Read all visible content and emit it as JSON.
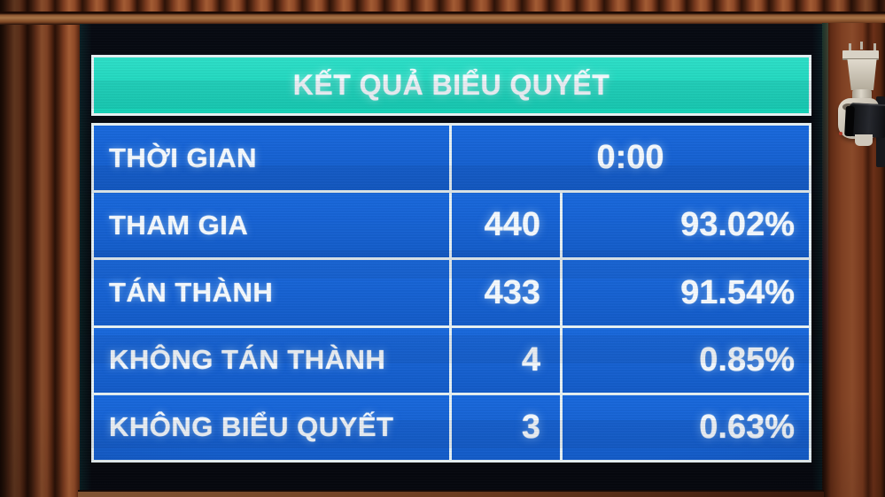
{
  "board": {
    "title": "KẾT QUẢ BIỂU QUYẾT",
    "time_row": {
      "label": "THỜI GIAN",
      "value": "0:00"
    },
    "rows": [
      {
        "label": "THAM GIA",
        "count": "440",
        "percent": "93.02%"
      },
      {
        "label": "TÁN THÀNH",
        "count": "433",
        "percent": "91.54%"
      },
      {
        "label": "KHÔNG TÁN THÀNH",
        "count": "4",
        "percent": "0.85%"
      },
      {
        "label": "KHÔNG BIỂU QUYẾT",
        "count": "3",
        "percent": "0.63%"
      }
    ],
    "colors": {
      "header_teal": "#1ed9c0",
      "cell_blue": "#1563d6",
      "grid_white": "#e8f2f5",
      "text_white": "#f6fbff"
    }
  },
  "scene": {
    "wall": "wooden-slat-wall",
    "camera": "white-ptz-camera"
  }
}
